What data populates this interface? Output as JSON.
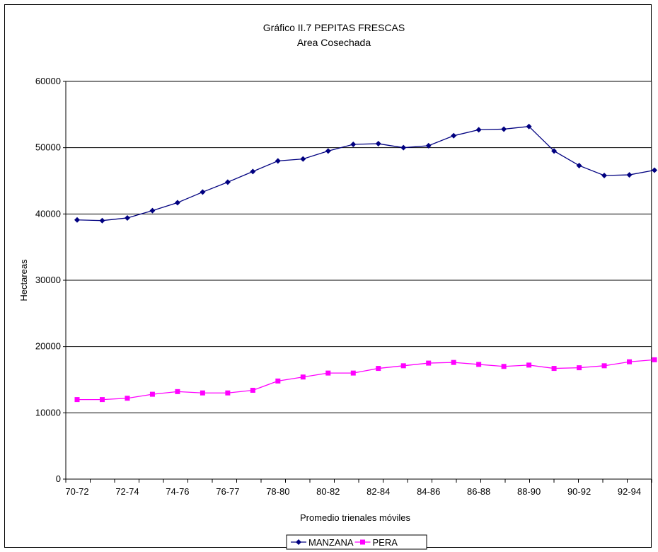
{
  "chart_data": {
    "type": "line",
    "title": "Gráfico II.7 PEPITAS FRESCAS",
    "subtitle": "Area Cosechada",
    "xlabel": "Promedio trienales móviles",
    "ylabel": "Hectareas",
    "ylim": [
      0,
      60000
    ],
    "yticks": [
      "0",
      "10000",
      "20000",
      "30000",
      "40000",
      "50000",
      "60000"
    ],
    "x_tick_labels": [
      "70-72",
      "72-74",
      "74-76",
      "76-77",
      "78-80",
      "80-82",
      "82-84",
      "84-86",
      "86-88",
      "88-90",
      "90-92",
      "92-94"
    ],
    "point_count": 24,
    "grid": true,
    "legend_position": "bottom",
    "series": [
      {
        "name": "MANZANA",
        "color": "#000080",
        "marker": "diamond",
        "values": [
          39100,
          39000,
          39400,
          40500,
          41700,
          43300,
          44800,
          46400,
          48000,
          48300,
          49500,
          50500,
          50600,
          50000,
          50300,
          51800,
          52700,
          52800,
          53200,
          49500,
          47300,
          45800,
          45900,
          46600
        ]
      },
      {
        "name": "PERA",
        "color": "#ff00ff",
        "marker": "square",
        "values": [
          12000,
          12000,
          12200,
          12800,
          13200,
          13000,
          13000,
          13400,
          14800,
          15400,
          16000,
          16000,
          16700,
          17100,
          17500,
          17600,
          17300,
          17000,
          17200,
          16700,
          16800,
          17100,
          17700,
          18000
        ]
      }
    ]
  }
}
